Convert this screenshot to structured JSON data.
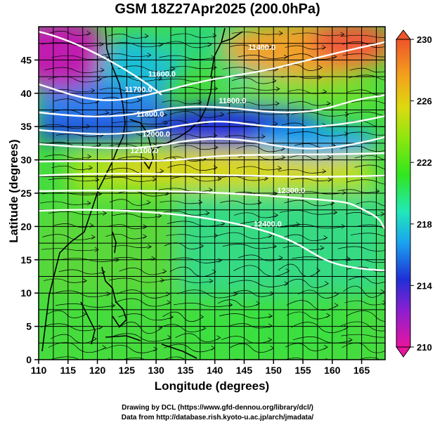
{
  "title": "GSM 18Z27Apr2025 (200.0hPa)",
  "xlabel": "Longitude (degrees)",
  "ylabel": "Latitude  (degrees)",
  "footer": {
    "line1": "Drawing by DCL (https://www.gfd-dennou.org/library/dcl/)",
    "line2": "Data from http://database.rish.kyoto-u.ac.jp/arch/jmadata/"
  },
  "map": {
    "lon_range": [
      110,
      169
    ],
    "lat_range": [
      0,
      50
    ],
    "x_ticks": [
      110,
      115,
      120,
      125,
      130,
      135,
      140,
      145,
      150,
      155,
      160,
      165
    ],
    "y_ticks": [
      0,
      5,
      10,
      15,
      20,
      25,
      30,
      35,
      40,
      45
    ],
    "grid": true
  },
  "colorbar": {
    "min": 210,
    "max": 230,
    "tick_values": [
      210,
      214,
      218,
      222,
      226,
      230
    ],
    "colors": [
      "#e8149e",
      "#8b1fd1",
      "#1f2fd6",
      "#1aa4f0",
      "#21e8b8",
      "#31e61e",
      "#8fe60f",
      "#ddd90f",
      "#f2a21c",
      "#f0542a"
    ]
  },
  "contour_labels": [
    {
      "text": "11600.0",
      "lon": 131,
      "lat": 42.5
    },
    {
      "text": "11800.0",
      "lon": 143,
      "lat": 38.5
    },
    {
      "text": "11800.0",
      "lon": 129,
      "lat": 36.5
    },
    {
      "text": "11700.0",
      "lon": 127,
      "lat": 40.2
    },
    {
      "text": "12000.0",
      "lon": 130,
      "lat": 33.5
    },
    {
      "text": "12100.0",
      "lon": 128,
      "lat": 31.0
    },
    {
      "text": "12300.0",
      "lon": 153,
      "lat": 25.0
    },
    {
      "text": "12400.0",
      "lon": 149,
      "lat": 20.0
    },
    {
      "text": "11400.0",
      "lon": 148,
      "lat": 46.5
    }
  ]
}
